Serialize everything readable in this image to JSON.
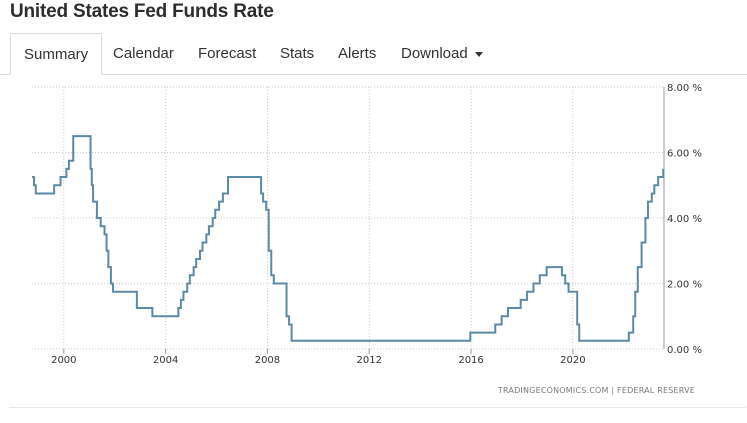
{
  "header": {
    "title": "United States Fed Funds Rate"
  },
  "tabs": [
    {
      "label": "Summary",
      "active": true
    },
    {
      "label": "Calendar"
    },
    {
      "label": "Forecast"
    },
    {
      "label": "Stats"
    },
    {
      "label": "Alerts"
    },
    {
      "label": "Download",
      "has_dropdown": true,
      "dropdown_icon": "caret-down-icon"
    }
  ],
  "chart_data": {
    "type": "line",
    "title": "",
    "xlabel": "",
    "ylabel": "",
    "xlim": [
      1998.75,
      2023.58
    ],
    "ylim": [
      0,
      8
    ],
    "x_ticks": [
      2000,
      2004,
      2008,
      2012,
      2016,
      2020
    ],
    "x_tick_labels": [
      "2000",
      "2004",
      "2008",
      "2012",
      "2016",
      "2020"
    ],
    "y_ticks": [
      0,
      2,
      4,
      6,
      8
    ],
    "y_tick_labels": [
      "0.00 %",
      "2.00 %",
      "4.00 %",
      "6.00 %",
      "8.00 %"
    ],
    "y_axis_position": "right",
    "grid": "dotted",
    "line_color": "#5b8aa6",
    "series": [
      {
        "values": [
          [
            1998.75,
            5.25
          ],
          [
            1998.83,
            5.0
          ],
          [
            1998.9,
            4.75
          ],
          [
            1999.5,
            4.75
          ],
          [
            1999.62,
            5.0
          ],
          [
            1999.87,
            5.25
          ],
          [
            2000.1,
            5.5
          ],
          [
            2000.2,
            5.75
          ],
          [
            2000.37,
            6.5
          ],
          [
            2000.99,
            6.5
          ],
          [
            2001.05,
            5.5
          ],
          [
            2001.1,
            5.0
          ],
          [
            2001.15,
            4.5
          ],
          [
            2001.3,
            4.0
          ],
          [
            2001.45,
            3.75
          ],
          [
            2001.6,
            3.5
          ],
          [
            2001.68,
            3.0
          ],
          [
            2001.75,
            2.5
          ],
          [
            2001.85,
            2.0
          ],
          [
            2001.93,
            1.75
          ],
          [
            2002.87,
            1.25
          ],
          [
            2003.48,
            1.0
          ],
          [
            2004.5,
            1.25
          ],
          [
            2004.6,
            1.5
          ],
          [
            2004.7,
            1.75
          ],
          [
            2004.85,
            2.0
          ],
          [
            2004.95,
            2.25
          ],
          [
            2005.1,
            2.5
          ],
          [
            2005.2,
            2.75
          ],
          [
            2005.35,
            3.0
          ],
          [
            2005.45,
            3.25
          ],
          [
            2005.6,
            3.5
          ],
          [
            2005.7,
            3.75
          ],
          [
            2005.85,
            4.0
          ],
          [
            2005.95,
            4.25
          ],
          [
            2006.1,
            4.5
          ],
          [
            2006.25,
            4.75
          ],
          [
            2006.45,
            5.25
          ],
          [
            2007.7,
            5.25
          ],
          [
            2007.75,
            4.75
          ],
          [
            2007.83,
            4.5
          ],
          [
            2007.95,
            4.25
          ],
          [
            2008.05,
            3.0
          ],
          [
            2008.15,
            2.25
          ],
          [
            2008.25,
            2.0
          ],
          [
            2008.75,
            1.0
          ],
          [
            2008.85,
            0.75
          ],
          [
            2008.95,
            0.25
          ],
          [
            2015.95,
            0.25
          ],
          [
            2015.97,
            0.5
          ],
          [
            2016.95,
            0.75
          ],
          [
            2017.2,
            1.0
          ],
          [
            2017.45,
            1.25
          ],
          [
            2017.95,
            1.5
          ],
          [
            2018.2,
            1.75
          ],
          [
            2018.45,
            2.0
          ],
          [
            2018.7,
            2.25
          ],
          [
            2018.97,
            2.5
          ],
          [
            2019.57,
            2.25
          ],
          [
            2019.7,
            2.0
          ],
          [
            2019.83,
            1.75
          ],
          [
            2020.17,
            0.75
          ],
          [
            2020.25,
            0.25
          ],
          [
            2022.2,
            0.5
          ],
          [
            2022.37,
            1.0
          ],
          [
            2022.45,
            1.75
          ],
          [
            2022.55,
            2.5
          ],
          [
            2022.7,
            3.25
          ],
          [
            2022.85,
            4.0
          ],
          [
            2022.95,
            4.5
          ],
          [
            2023.1,
            4.75
          ],
          [
            2023.2,
            5.0
          ],
          [
            2023.35,
            5.25
          ],
          [
            2023.55,
            5.5
          ]
        ]
      }
    ],
    "source": "TRADINGECONOMICS.COM  |  FEDERAL RESERVE"
  }
}
